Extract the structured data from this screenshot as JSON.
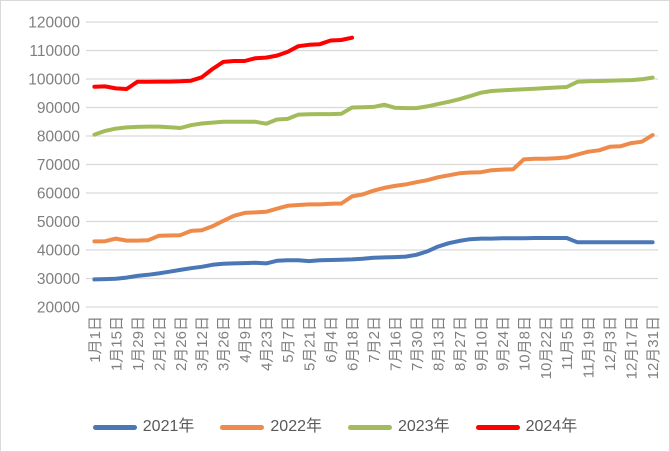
{
  "chart_data": {
    "type": "line",
    "title": "",
    "grid": true,
    "legend_position": "bottom",
    "ylim": [
      20000,
      120000
    ],
    "y_step": 10000,
    "y_tick_labels": [
      "120000",
      "110000",
      "100000",
      "90000",
      "80000",
      "70000",
      "60000",
      "50000",
      "40000",
      "30000",
      "20000"
    ],
    "x_tick_labels": [
      "1月1日",
      "1月15日",
      "1月29日",
      "2月12日",
      "2月26日",
      "3月12日",
      "3月26日",
      "4月9日",
      "4月23日",
      "5月7日",
      "5月21日",
      "6月4日",
      "6月18日",
      "7月2日",
      "7月16日",
      "7月30日",
      "8月13日",
      "8月27日",
      "9月10日",
      "9月24日",
      "10月8日",
      "10月22日",
      "11月5日",
      "11月19日",
      "12月3日",
      "12月17日",
      "12月31日"
    ],
    "categories": [
      "1月1日",
      "1月8日",
      "1月15日",
      "1月22日",
      "1月29日",
      "2月5日",
      "2月12日",
      "2月19日",
      "2月26日",
      "3月5日",
      "3月12日",
      "3月19日",
      "3月26日",
      "4月2日",
      "4月9日",
      "4月16日",
      "4月23日",
      "4月30日",
      "5月7日",
      "5月14日",
      "5月21日",
      "5月28日",
      "6月4日",
      "6月11日",
      "6月18日",
      "6月25日",
      "7月2日",
      "7月9日",
      "7月16日",
      "7月23日",
      "7月30日",
      "8月6日",
      "8月13日",
      "8月20日",
      "8月27日",
      "9月3日",
      "9月10日",
      "9月17日",
      "9月24日",
      "10月1日",
      "10月8日",
      "10月15日",
      "10月22日",
      "10月29日",
      "11月5日",
      "11月12日",
      "11月19日",
      "11月26日",
      "12月3日",
      "12月10日",
      "12月17日",
      "12月24日",
      "12月31日"
    ],
    "series": [
      {
        "name": "2021年",
        "color": "#4A77B5",
        "values": [
          29700,
          29800,
          29900,
          30300,
          30900,
          31300,
          31800,
          32400,
          33000,
          33600,
          34100,
          34800,
          35200,
          35300,
          35400,
          35500,
          35300,
          36200,
          36400,
          36400,
          36100,
          36400,
          36500,
          36600,
          36700,
          36900,
          37300,
          37400,
          37500,
          37700,
          38300,
          39500,
          41200,
          42400,
          43200,
          43800,
          44000,
          44000,
          44100,
          44100,
          44100,
          44200,
          44200,
          44200,
          44200,
          42700,
          42700,
          42700,
          42700,
          42700,
          42700,
          42700,
          42700
        ]
      },
      {
        "name": "2022年",
        "color": "#EE8A4A",
        "values": [
          43000,
          43100,
          44000,
          43300,
          43300,
          43400,
          45000,
          45100,
          45200,
          46700,
          46900,
          48300,
          50200,
          52000,
          53000,
          53200,
          53400,
          54500,
          55500,
          55800,
          56000,
          56000,
          56200,
          56300,
          58800,
          59500,
          60800,
          61800,
          62500,
          63000,
          63800,
          64500,
          65500,
          66200,
          66900,
          67200,
          67300,
          68000,
          68200,
          68300,
          71800,
          72000,
          72000,
          72200,
          72500,
          73500,
          74500,
          75000,
          76200,
          76400,
          77500,
          78000,
          80300
        ]
      },
      {
        "name": "2023年",
        "color": "#A2BC5C",
        "values": [
          80500,
          81800,
          82600,
          83000,
          83200,
          83300,
          83300,
          83100,
          82800,
          83800,
          84400,
          84700,
          85000,
          85000,
          85000,
          85000,
          84300,
          85800,
          86000,
          87500,
          87600,
          87700,
          87700,
          87800,
          90000,
          90100,
          90200,
          91000,
          89900,
          89800,
          89800,
          90400,
          91200,
          92000,
          92900,
          94000,
          95200,
          95800,
          96000,
          96200,
          96400,
          96600,
          96800,
          97000,
          97200,
          99000,
          99200,
          99300,
          99400,
          99500,
          99600,
          99900,
          100500
        ]
      },
      {
        "name": "2024年",
        "color": "#FE0000",
        "values": [
          97300,
          97400,
          96700,
          96500,
          99000,
          99000,
          99100,
          99100,
          99200,
          99400,
          100600,
          103500,
          106000,
          106300,
          106300,
          107300,
          107500,
          108200,
          109500,
          111500,
          112000,
          112200,
          113500,
          113700,
          114500
        ]
      }
    ],
    "colors": {
      "gridline": "#d9d9d9",
      "axis_label": "#7f7f7f",
      "legend_label": "#595959",
      "background": "#ffffff"
    }
  }
}
